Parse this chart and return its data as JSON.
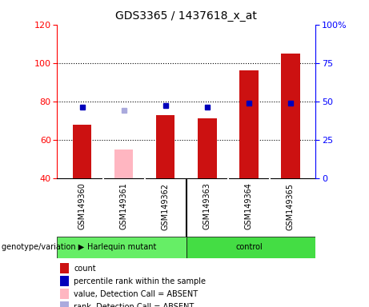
{
  "title": "GDS3365 / 1437618_x_at",
  "samples": [
    "GSM149360",
    "GSM149361",
    "GSM149362",
    "GSM149363",
    "GSM149364",
    "GSM149365"
  ],
  "count_values": [
    68,
    null,
    73,
    71,
    96,
    105
  ],
  "count_absent": [
    null,
    55,
    null,
    null,
    null,
    null
  ],
  "rank_values": [
    46,
    null,
    47,
    46,
    49,
    49
  ],
  "rank_absent": [
    null,
    44,
    null,
    null,
    null,
    null
  ],
  "ylim_left": [
    40,
    120
  ],
  "ylim_right": [
    0,
    100
  ],
  "left_ticks": [
    40,
    60,
    80,
    100,
    120
  ],
  "right_ticks": [
    0,
    25,
    50,
    75,
    100
  ],
  "right_tick_labels": [
    "0",
    "25",
    "50",
    "75",
    "100%"
  ],
  "bar_color": "#CC1111",
  "bar_absent_color": "#FFB6C1",
  "rank_color": "#0000BB",
  "rank_absent_color": "#AAAADD",
  "bar_width": 0.45,
  "rank_marker_size": 5,
  "harlequin_color": "#66EE66",
  "control_color": "#44DD44",
  "gray_bg": "#D3D3D3"
}
